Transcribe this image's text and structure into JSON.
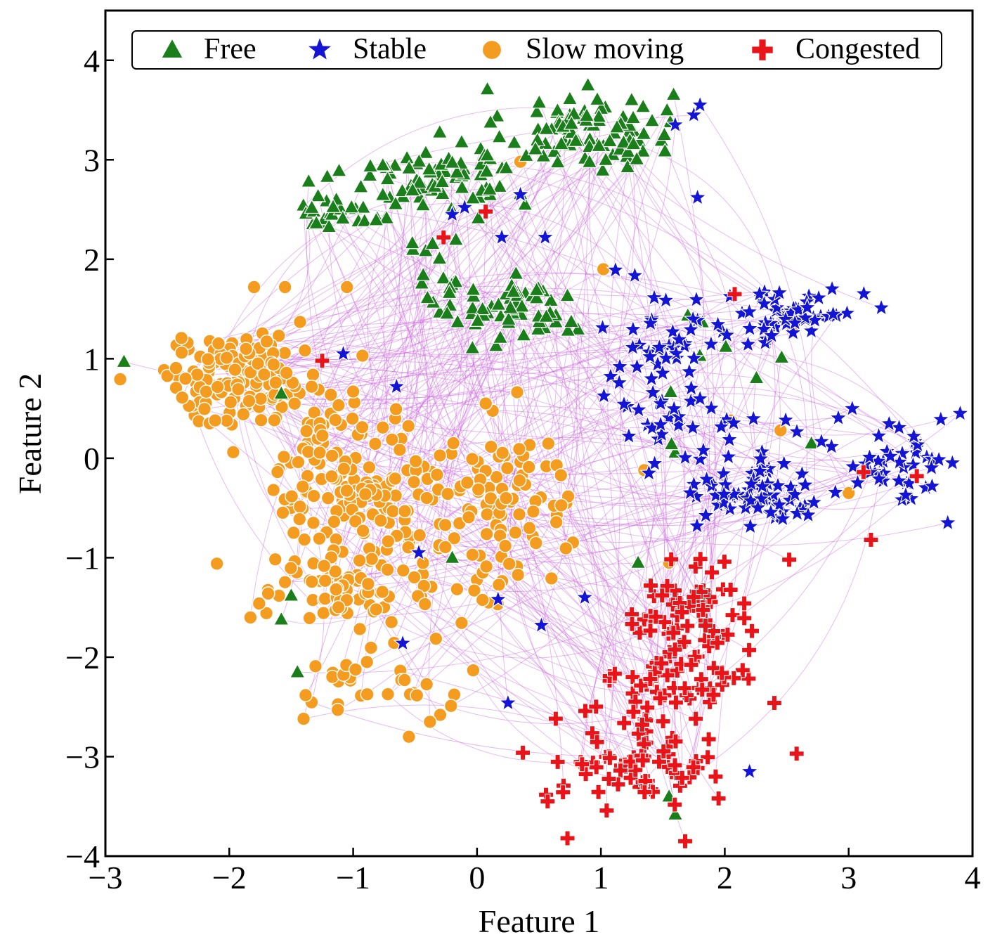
{
  "chart_data": {
    "type": "scatter",
    "title": "",
    "xlabel": "Feature 1",
    "ylabel": "Feature 2",
    "xlim": [
      -3,
      4
    ],
    "ylim": [
      -4,
      4.5
    ],
    "xticks": [
      -3,
      -2,
      -1,
      0,
      1,
      2,
      3,
      4
    ],
    "yticks": [
      -4,
      -3,
      -2,
      -1,
      0,
      1,
      2,
      3,
      4
    ],
    "xtick_labels": [
      "−3",
      "−2",
      "−1",
      "0",
      "1",
      "2",
      "3",
      "4"
    ],
    "ytick_labels": [
      "−4",
      "−3",
      "−2",
      "−1",
      "0",
      "1",
      "2",
      "3",
      "4"
    ],
    "grid": false,
    "legend_position": "top",
    "link_color": "#cc66dd",
    "series": [
      {
        "name": "Free",
        "marker": "triangle",
        "color": "#1a7f1a",
        "clusters": [
          {
            "center": [
              0.9,
              3.3
            ],
            "spread": [
              0.45,
              0.28
            ],
            "n": 90
          },
          {
            "center": [
              -0.3,
              2.85
            ],
            "spread": [
              0.5,
              0.22
            ],
            "n": 80
          },
          {
            "center": [
              -1.1,
              2.5
            ],
            "spread": [
              0.35,
              0.15
            ],
            "n": 30
          },
          {
            "center": [
              0.35,
              1.45
            ],
            "spread": [
              0.35,
              0.2
            ],
            "n": 55
          },
          {
            "center": [
              -0.2,
              1.9
            ],
            "spread": [
              0.3,
              0.3
            ],
            "n": 20
          },
          {
            "center": [
              1.9,
              0.8
            ],
            "spread": [
              0.6,
              0.5
            ],
            "n": 10
          }
        ],
        "points": [
          [
            -2.85,
            0.97
          ],
          [
            -1.58,
            0.65
          ],
          [
            -1.5,
            -1.38
          ],
          [
            -1.58,
            -1.62
          ],
          [
            -1.45,
            -2.15
          ],
          [
            -0.2,
            -1.0
          ],
          [
            1.3,
            -1.05
          ],
          [
            1.55,
            -3.4
          ],
          [
            1.6,
            -3.58
          ],
          [
            2.7,
            0.15
          ]
        ]
      },
      {
        "name": "Stable",
        "marker": "star",
        "color": "#1414d4",
        "clusters": [
          {
            "center": [
              2.5,
              1.45
            ],
            "spread": [
              0.4,
              0.25
            ],
            "n": 60
          },
          {
            "center": [
              1.4,
              1.05
            ],
            "spread": [
              0.35,
              0.4
            ],
            "n": 40
          },
          {
            "center": [
              2.3,
              -0.35
            ],
            "spread": [
              0.45,
              0.25
            ],
            "n": 70
          },
          {
            "center": [
              3.4,
              0.0
            ],
            "spread": [
              0.35,
              0.3
            ],
            "n": 45
          },
          {
            "center": [
              1.7,
              0.4
            ],
            "spread": [
              0.4,
              0.2
            ],
            "n": 25
          }
        ],
        "points": [
          [
            1.6,
            3.35
          ],
          [
            1.75,
            3.45
          ],
          [
            1.8,
            3.55
          ],
          [
            1.78,
            2.62
          ],
          [
            0.35,
            2.65
          ],
          [
            -0.2,
            2.45
          ],
          [
            -0.1,
            2.52
          ],
          [
            0.2,
            2.22
          ],
          [
            0.55,
            2.22
          ],
          [
            -1.08,
            1.05
          ],
          [
            -0.65,
            0.72
          ],
          [
            -0.47,
            -0.95
          ],
          [
            0.17,
            -1.42
          ],
          [
            0.52,
            -1.68
          ],
          [
            -0.6,
            -1.86
          ],
          [
            0.25,
            -2.46
          ],
          [
            0.87,
            -1.4
          ],
          [
            2.2,
            -3.15
          ],
          [
            3.9,
            0.45
          ],
          [
            3.8,
            -0.65
          ]
        ]
      },
      {
        "name": "Slow moving",
        "marker": "circle",
        "color": "#f39c1f",
        "clusters": [
          {
            "center": [
              -1.9,
              0.8
            ],
            "spread": [
              0.45,
              0.3
            ],
            "n": 150
          },
          {
            "center": [
              -0.95,
              -0.2
            ],
            "spread": [
              0.45,
              0.45
            ],
            "n": 140
          },
          {
            "center": [
              0.2,
              -0.5
            ],
            "spread": [
              0.45,
              0.55
            ],
            "n": 100
          },
          {
            "center": [
              -1.0,
              -1.3
            ],
            "spread": [
              0.5,
              0.3
            ],
            "n": 90
          },
          {
            "center": [
              -0.9,
              -2.3
            ],
            "spread": [
              0.45,
              0.25
            ],
            "n": 30
          }
        ],
        "points": [
          [
            -2.1,
            -1.06
          ],
          [
            -1.8,
            1.72
          ],
          [
            -1.55,
            1.72
          ],
          [
            -1.05,
            1.72
          ],
          [
            0.07,
            0.55
          ],
          [
            1.02,
            1.9
          ],
          [
            2.05,
            0.38
          ],
          [
            2.45,
            0.28
          ],
          [
            2.55,
            1.3
          ],
          [
            3.0,
            -0.35
          ],
          [
            0.35,
            2.98
          ],
          [
            -1.4,
            -2.62
          ],
          [
            -0.55,
            -2.8
          ],
          [
            -0.38,
            -2.65
          ],
          [
            1.55,
            -1.05
          ],
          [
            1.35,
            -0.12
          ]
        ]
      },
      {
        "name": "Congested",
        "marker": "plus",
        "color": "#e8141a",
        "clusters": [
          {
            "center": [
              1.75,
              -1.6
            ],
            "spread": [
              0.3,
              0.35
            ],
            "n": 70
          },
          {
            "center": [
              1.6,
              -2.3
            ],
            "spread": [
              0.4,
              0.3
            ],
            "n": 40
          },
          {
            "center": [
              1.3,
              -3.0
            ],
            "spread": [
              0.4,
              0.3
            ],
            "n": 70
          }
        ],
        "points": [
          [
            -1.25,
            0.98
          ],
          [
            -0.27,
            2.22
          ],
          [
            0.07,
            2.48
          ],
          [
            2.08,
            1.65
          ],
          [
            3.12,
            -0.14
          ],
          [
            3.18,
            -0.82
          ],
          [
            2.52,
            -1.02
          ],
          [
            3.55,
            -0.18
          ],
          [
            0.37,
            -2.96
          ],
          [
            0.57,
            -3.45
          ],
          [
            0.73,
            -3.82
          ],
          [
            2.58,
            -2.97
          ],
          [
            2.4,
            -2.46
          ],
          [
            1.68,
            -3.85
          ],
          [
            1.95,
            -3.42
          ]
        ]
      }
    ]
  }
}
